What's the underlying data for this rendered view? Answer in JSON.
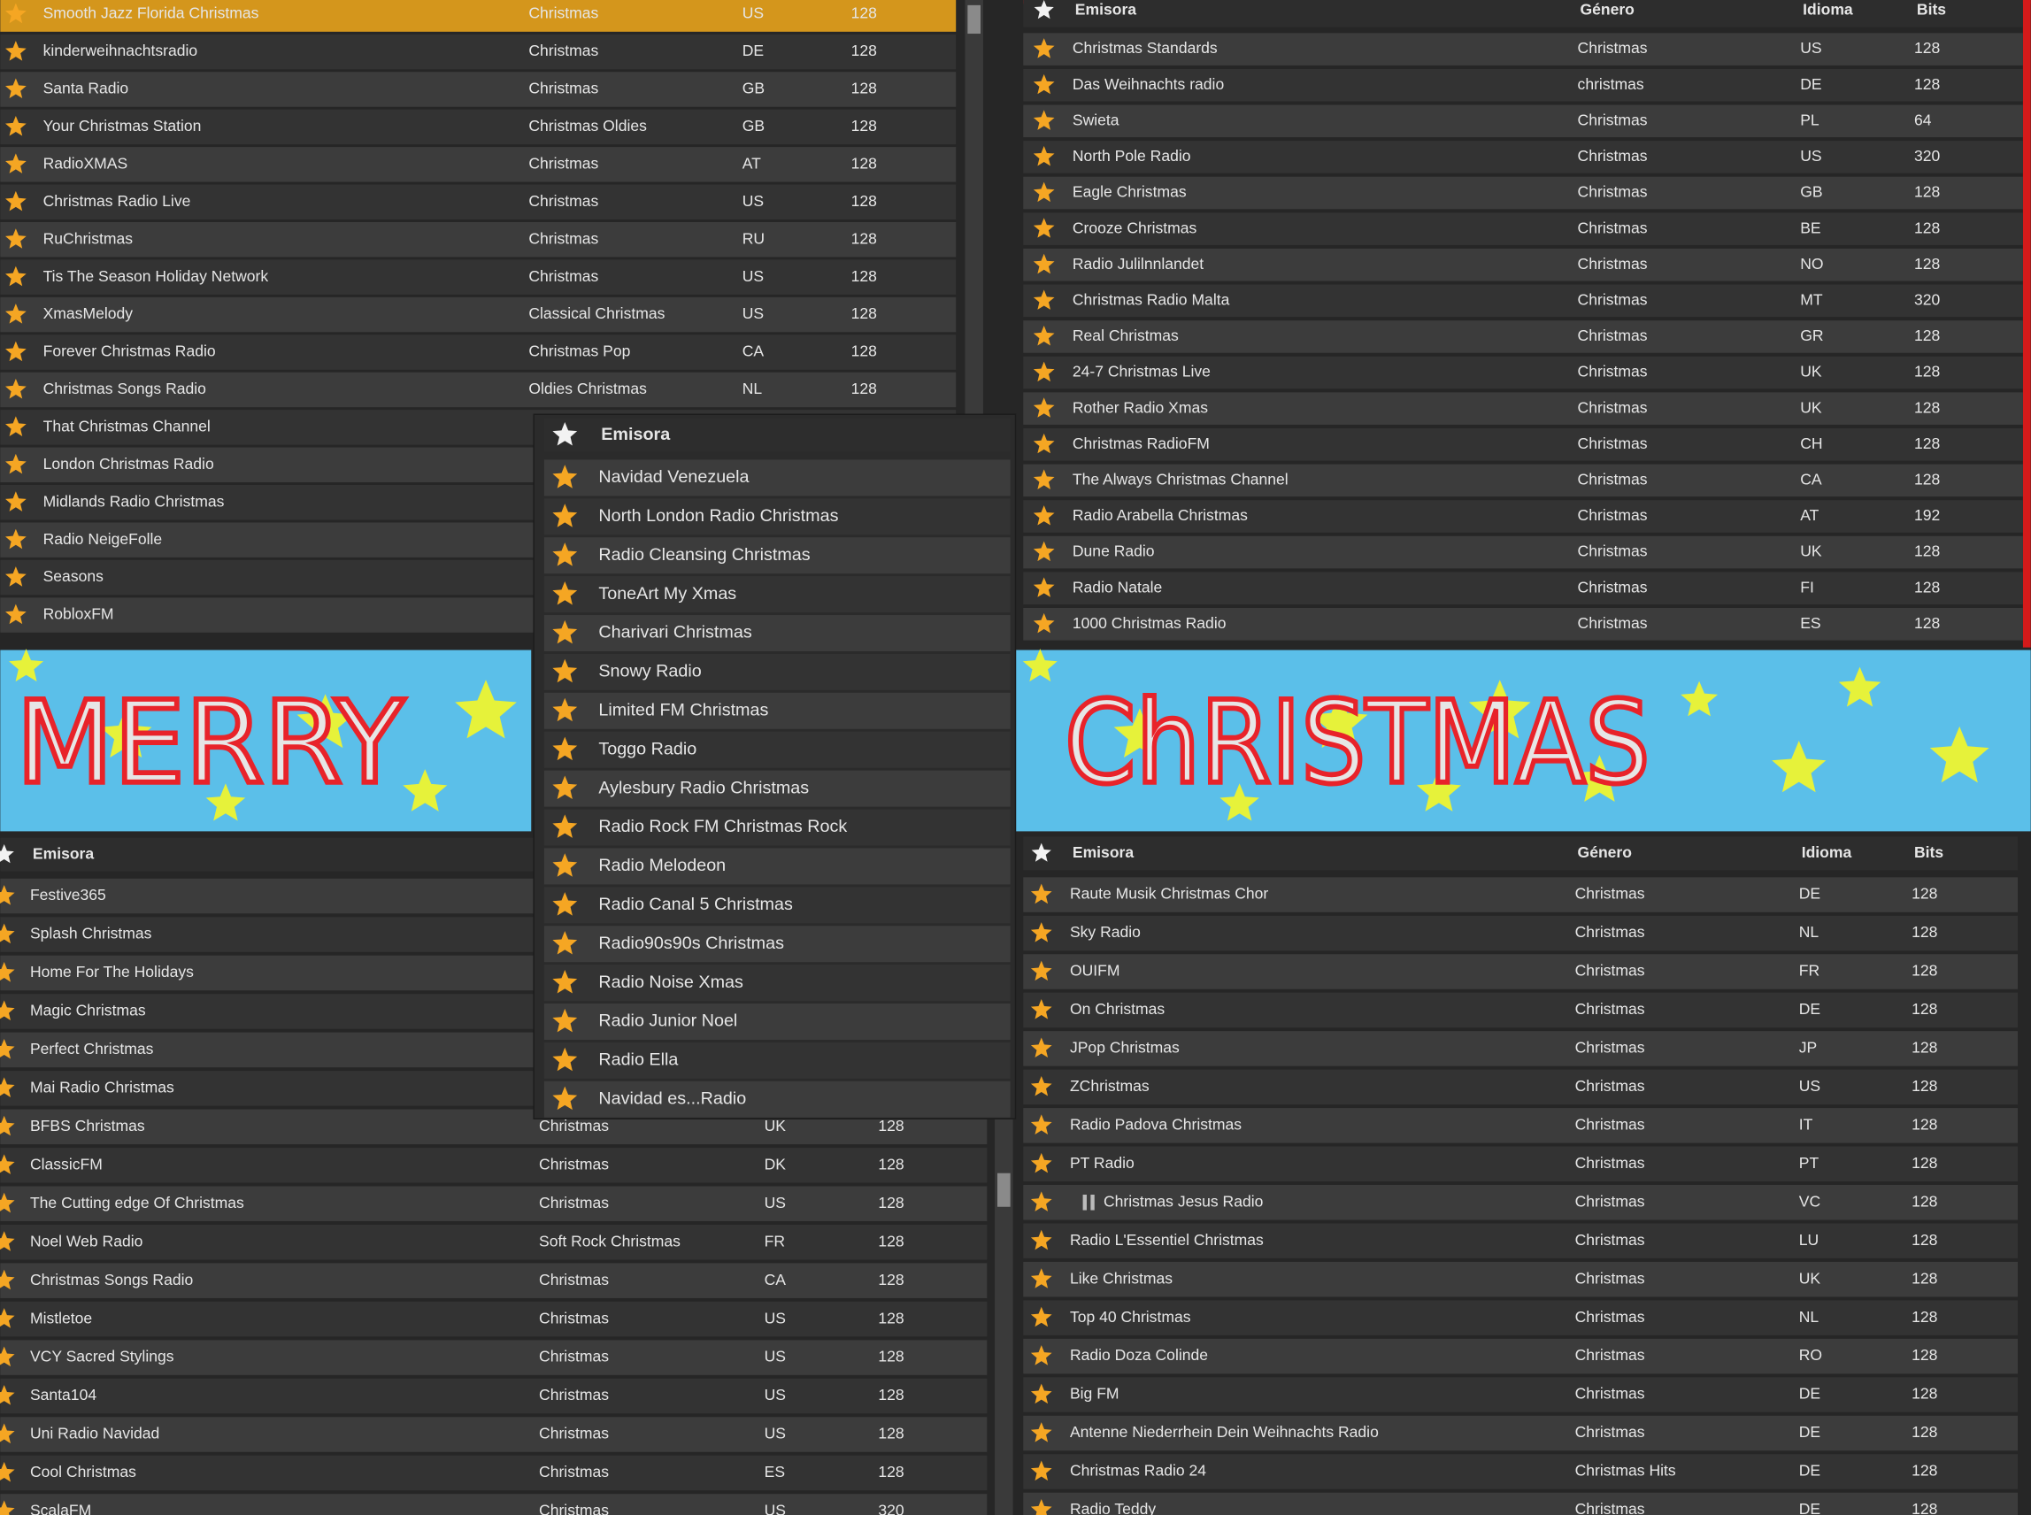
{
  "top_left": {
    "rows": [
      [
        "Smooth Jazz Florida Christmas",
        "Christmas",
        "US",
        128
      ],
      [
        "kinderweihnachtsradio",
        "Christmas",
        "DE",
        128
      ],
      [
        "Santa Radio",
        "Christmas",
        "GB",
        128
      ],
      [
        "Your Christmas Station",
        "Christmas Oldies",
        "GB",
        128
      ],
      [
        "RadioXMAS",
        "Christmas",
        "AT",
        128
      ],
      [
        "Christmas Radio Live",
        "Christmas",
        "US",
        128
      ],
      [
        "RuChristmas",
        "Christmas",
        "RU",
        128
      ],
      [
        "Tis The Season Holiday Network",
        "Christmas",
        "US",
        128
      ],
      [
        "XmasMelody",
        "Classical Christmas",
        "US",
        128
      ],
      [
        "Forever Christmas Radio",
        "Christmas Pop",
        "CA",
        128
      ],
      [
        "Christmas Songs Radio",
        "Oldies Christmas",
        "NL",
        128
      ],
      [
        "That Christmas Channel"
      ],
      [
        "London Christmas Radio"
      ],
      [
        "Midlands Radio Christmas"
      ],
      [
        "Radio NeigeFolle"
      ],
      [
        "Seasons"
      ],
      [
        "RobloxFM"
      ]
    ]
  },
  "top_right": {
    "header": [
      "Emisora",
      "Género",
      "Idioma",
      "Bits"
    ],
    "rows": [
      [
        "Christmas Standards",
        "Christmas",
        "US",
        128
      ],
      [
        "Das Weihnachts radio",
        "christmas",
        "DE",
        128
      ],
      [
        "Swieta",
        "Christmas",
        "PL",
        64
      ],
      [
        "North Pole Radio",
        "Christmas",
        "US",
        320
      ],
      [
        "Eagle Christmas",
        "Christmas",
        "GB",
        128
      ],
      [
        "Crooze Christmas",
        "Christmas",
        "BE",
        128
      ],
      [
        "Radio Julilnnlandet",
        "Christmas",
        "NO",
        128
      ],
      [
        "Christmas Radio Malta",
        "Christmas",
        "MT",
        320
      ],
      [
        "Real Christmas",
        "Christmas",
        "GR",
        128
      ],
      [
        "24-7 Christmas Live",
        "Christmas",
        "UK",
        128
      ],
      [
        "Rother Radio Xmas",
        "Christmas",
        "UK",
        128
      ],
      [
        "Christmas RadioFM",
        "Christmas",
        "CH",
        128
      ],
      [
        "The Always Christmas Channel",
        "Christmas",
        "CA",
        128
      ],
      [
        "Radio Arabella Christmas",
        "Christmas",
        "AT",
        192
      ],
      [
        "Dune Radio",
        "Christmas",
        "UK",
        128
      ],
      [
        "Radio Natale",
        "Christmas",
        "FI",
        128
      ],
      [
        "1000 Christmas Radio",
        "Christmas",
        "ES",
        128
      ]
    ]
  },
  "banner": {
    "left": "MERRY",
    "right": "ChRISTMAS"
  },
  "bottom_left": {
    "header": [
      "Emisora"
    ],
    "rows": [
      [
        "Festive365"
      ],
      [
        "Splash Christmas"
      ],
      [
        "Home For The Holidays"
      ],
      [
        "Magic Christmas"
      ],
      [
        "Perfect Christmas"
      ],
      [
        "Mai Radio Christmas"
      ],
      [
        "BFBS Christmas",
        "Christmas",
        "UK",
        128
      ],
      [
        "ClassicFM",
        "Christmas",
        "DK",
        128
      ],
      [
        "The Cutting edge Of Christmas",
        "Christmas",
        "US",
        128
      ],
      [
        "Noel Web Radio",
        "Soft Rock Christmas",
        "FR",
        128
      ],
      [
        "Christmas Songs Radio",
        "Christmas",
        "CA",
        128
      ],
      [
        "Mistletoe",
        "Christmas",
        "US",
        128
      ],
      [
        "VCY Sacred Stylings",
        "Christmas",
        "US",
        128
      ],
      [
        "Santa104",
        "Christmas",
        "US",
        128
      ],
      [
        "Uni Radio Navidad",
        "Christmas",
        "US",
        128
      ],
      [
        "Cool Christmas",
        "Christmas",
        "ES",
        128
      ],
      [
        "ScalaFM",
        "Christmas",
        "US",
        320
      ]
    ]
  },
  "bottom_right": {
    "header": [
      "Emisora",
      "Género",
      "Idioma",
      "Bits"
    ],
    "rows": [
      [
        "Raute Musik Christmas Chor",
        "Christmas",
        "DE",
        128
      ],
      [
        "Sky Radio",
        "Christmas",
        "NL",
        128
      ],
      [
        "OUIFM",
        "Christmas",
        "FR",
        128
      ],
      [
        "On Christmas",
        "Christmas",
        "DE",
        128
      ],
      [
        "JPop Christmas",
        "Christmas",
        "JP",
        128
      ],
      [
        "ZChristmas",
        "Christmas",
        "US",
        128
      ],
      [
        "Radio Padova Christmas",
        "Christmas",
        "IT",
        128
      ],
      [
        "PT Radio",
        "Christmas",
        "PT",
        128
      ],
      [
        "Christmas Jesus Radio",
        "Christmas",
        "VC",
        128
      ],
      [
        "Radio L'Essentiel Christmas",
        "Christmas",
        "LU",
        128
      ],
      [
        "Like Christmas",
        "Christmas",
        "UK",
        128
      ],
      [
        "Top 40 Christmas",
        "Christmas",
        "NL",
        128
      ],
      [
        "Radio Doza Colinde",
        "Christmas",
        "RO",
        128
      ],
      [
        "Big FM",
        "Christmas",
        "DE",
        128
      ],
      [
        "Antenne Niederrhein Dein Weihnachts Radio",
        "Christmas",
        "DE",
        128
      ],
      [
        "Christmas Radio 24",
        "Christmas Hits",
        "DE",
        128
      ],
      [
        "Radio Teddy",
        "Christmas",
        "DE",
        128
      ]
    ]
  },
  "overlay": {
    "header": [
      "Emisora"
    ],
    "rows": [
      [
        "Navidad Venezuela"
      ],
      [
        "North London Radio Christmas"
      ],
      [
        "Radio Cleansing Christmas"
      ],
      [
        "ToneArt My Xmas"
      ],
      [
        "Charivari Christmas"
      ],
      [
        "Snowy Radio"
      ],
      [
        "Limited FM Christmas"
      ],
      [
        "Toggo Radio"
      ],
      [
        "Aylesbury Radio Christmas"
      ],
      [
        "Radio Rock FM Christmas Rock"
      ],
      [
        "Radio Melodeon"
      ],
      [
        "Radio Canal 5 Christmas"
      ],
      [
        "Radio90s90s Christmas"
      ],
      [
        "Radio Noise Xmas"
      ],
      [
        "Radio Junior Noel"
      ],
      [
        "Radio Ella"
      ],
      [
        "Navidad es...Radio"
      ]
    ]
  }
}
